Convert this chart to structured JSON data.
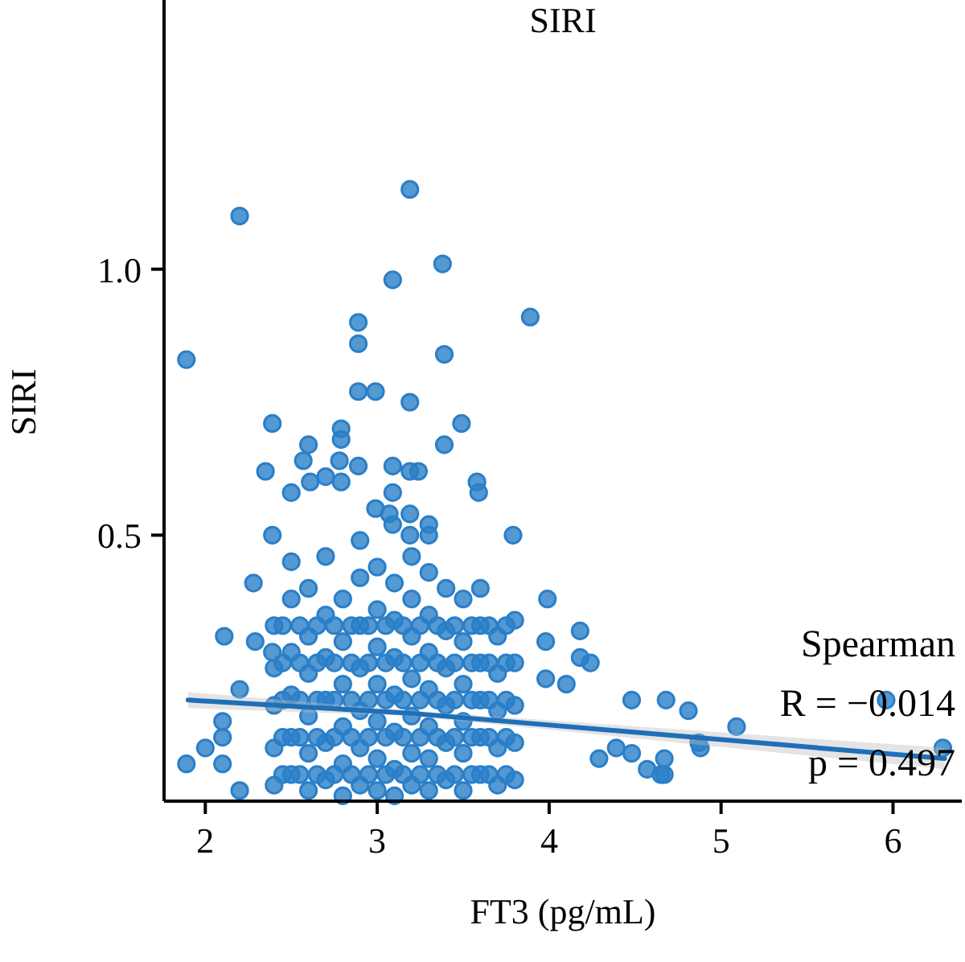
{
  "chart_data": {
    "type": "scatter",
    "title": "SIRI",
    "xlabel": "FT3 (pg/mL)",
    "ylabel": "SIRI",
    "xlim": [
      1.76,
      6.4
    ],
    "ylim": [
      0,
      1.5
    ],
    "xticks": [
      2,
      3,
      4,
      5,
      6
    ],
    "yticks": [
      {
        "value": 0.5,
        "label": "0.5"
      },
      {
        "value": 1,
        "label": "1.0"
      }
    ],
    "grid": false,
    "annotations": [
      "Spearman",
      "R = −0.014",
      "p = 0.497"
    ],
    "series": [
      {
        "marker": "circle",
        "color": "#2a7fc8",
        "x": [
          3.19,
          2.2,
          3.38,
          3.09,
          3.89,
          2.89,
          2.89,
          3.39,
          1.89,
          2.89,
          2.99,
          3.19,
          2.39,
          3.49,
          2.6,
          2.79,
          2.79,
          3.39,
          2.35,
          2.57,
          2.78,
          2.89,
          3.09,
          3.19,
          3.24,
          2.5,
          2.61,
          2.7,
          2.79,
          3.58,
          3.59,
          3.09,
          2.99,
          3.07,
          3.19,
          3.3,
          3.09,
          3.79,
          2.39,
          3.19,
          3.3,
          2.11,
          2.28,
          2.29,
          2.2,
          1.89,
          2.0,
          2.1,
          2.1,
          2.1,
          2.2,
          2.39,
          3.99,
          4.18,
          4.18,
          4.24,
          4.48,
          4.68,
          4.81,
          4.39,
          4.48,
          4.57,
          4.67,
          4.67,
          4.29,
          4.88,
          3.98,
          3.98,
          4.1,
          5.09,
          5.96,
          6.29,
          4.87,
          4.65,
          2.4,
          2.4,
          2.4,
          2.4,
          2.4,
          2.5,
          2.5,
          2.5,
          2.5,
          2.5,
          2.5,
          2.6,
          2.6,
          2.6,
          2.6,
          2.6,
          2.6,
          2.7,
          2.7,
          2.7,
          2.7,
          2.7,
          2.7,
          2.8,
          2.8,
          2.8,
          2.8,
          2.8,
          2.8,
          2.9,
          2.9,
          2.9,
          2.9,
          2.9,
          2.9,
          2.9,
          3.0,
          3.0,
          3.0,
          3.0,
          3.0,
          3.0,
          3.0,
          3.1,
          3.1,
          3.1,
          3.1,
          3.1,
          3.1,
          3.1,
          3.2,
          3.2,
          3.2,
          3.2,
          3.2,
          3.2,
          3.2,
          3.3,
          3.3,
          3.3,
          3.3,
          3.3,
          3.3,
          3.3,
          3.4,
          3.4,
          3.4,
          3.4,
          3.4,
          3.4,
          3.5,
          3.5,
          3.5,
          3.5,
          3.5,
          3.5,
          3.6,
          3.6,
          3.6,
          3.6,
          3.6,
          3.6,
          3.7,
          3.7,
          3.7,
          3.7,
          3.7,
          3.8,
          3.8,
          3.8,
          3.8,
          3.8,
          2.45,
          2.45,
          2.45,
          2.45,
          2.45,
          2.55,
          2.55,
          2.55,
          2.55,
          2.55,
          2.65,
          2.65,
          2.65,
          2.65,
          2.65,
          2.75,
          2.75,
          2.75,
          2.75,
          2.75,
          2.85,
          2.85,
          2.85,
          2.85,
          2.85,
          2.95,
          2.95,
          2.95,
          2.95,
          2.95,
          3.05,
          3.05,
          3.05,
          3.05,
          3.05,
          3.15,
          3.15,
          3.15,
          3.15,
          3.15,
          3.25,
          3.25,
          3.25,
          3.25,
          3.25,
          3.35,
          3.35,
          3.35,
          3.35,
          3.35,
          3.45,
          3.45,
          3.45,
          3.45,
          3.45,
          3.55,
          3.55,
          3.55,
          3.55,
          3.55,
          3.65,
          3.65,
          3.65,
          3.65,
          3.65,
          3.75,
          3.75,
          3.75,
          3.75,
          3.75
        ],
        "values": [
          1.15,
          1.1,
          1.01,
          0.98,
          0.91,
          0.9,
          0.86,
          0.84,
          0.83,
          0.77,
          0.77,
          0.75,
          0.71,
          0.71,
          0.67,
          0.7,
          0.68,
          0.67,
          0.62,
          0.64,
          0.64,
          0.63,
          0.63,
          0.62,
          0.62,
          0.58,
          0.6,
          0.61,
          0.6,
          0.6,
          0.58,
          0.58,
          0.55,
          0.54,
          0.54,
          0.52,
          0.52,
          0.5,
          0.5,
          0.5,
          0.5,
          0.31,
          0.41,
          0.3,
          0.21,
          0.07,
          0.1,
          0.07,
          0.12,
          0.15,
          0.02,
          0.28,
          0.38,
          0.32,
          0.27,
          0.26,
          0.19,
          0.19,
          0.17,
          0.1,
          0.09,
          0.06,
          0.05,
          0.08,
          0.08,
          0.1,
          0.3,
          0.23,
          0.22,
          0.14,
          0.19,
          0.1,
          0.11,
          0.05,
          0.03,
          0.1,
          0.18,
          0.25,
          0.33,
          0.05,
          0.12,
          0.2,
          0.28,
          0.38,
          0.45,
          0.02,
          0.09,
          0.16,
          0.24,
          0.31,
          0.4,
          0.04,
          0.11,
          0.19,
          0.27,
          0.35,
          0.46,
          0.01,
          0.07,
          0.14,
          0.22,
          0.3,
          0.38,
          0.03,
          0.1,
          0.17,
          0.25,
          0.33,
          0.42,
          0.49,
          0.02,
          0.08,
          0.15,
          0.22,
          0.29,
          0.36,
          0.44,
          0.01,
          0.06,
          0.13,
          0.2,
          0.27,
          0.34,
          0.41,
          0.03,
          0.09,
          0.16,
          0.23,
          0.31,
          0.38,
          0.46,
          0.02,
          0.08,
          0.14,
          0.21,
          0.28,
          0.35,
          0.43,
          0.04,
          0.11,
          0.18,
          0.25,
          0.32,
          0.4,
          0.02,
          0.09,
          0.15,
          0.22,
          0.3,
          0.38,
          0.05,
          0.12,
          0.19,
          0.26,
          0.33,
          0.4,
          0.03,
          0.1,
          0.17,
          0.24,
          0.31,
          0.04,
          0.11,
          0.18,
          0.26,
          0.34,
          0.05,
          0.12,
          0.19,
          0.26,
          0.33,
          0.05,
          0.12,
          0.19,
          0.26,
          0.33,
          0.05,
          0.12,
          0.19,
          0.26,
          0.33,
          0.05,
          0.12,
          0.19,
          0.26,
          0.33,
          0.05,
          0.12,
          0.19,
          0.26,
          0.33,
          0.05,
          0.12,
          0.19,
          0.26,
          0.33,
          0.05,
          0.12,
          0.19,
          0.26,
          0.33,
          0.05,
          0.12,
          0.19,
          0.26,
          0.33,
          0.05,
          0.12,
          0.19,
          0.26,
          0.33,
          0.05,
          0.12,
          0.19,
          0.26,
          0.33,
          0.05,
          0.12,
          0.19,
          0.26,
          0.33,
          0.05,
          0.12,
          0.19,
          0.26,
          0.33,
          0.05,
          0.12,
          0.19,
          0.26,
          0.33,
          0.05,
          0.12,
          0.19,
          0.26,
          0.33
        ]
      },
      {
        "type": "line",
        "color": "#1f6fb8",
        "x": [
          1.9,
          3.2,
          6.3
        ],
        "values": [
          0.19,
          0.165,
          0.08
        ],
        "lower": [
          0.175,
          0.16,
          0.06
        ],
        "upper": [
          0.205,
          0.17,
          0.1
        ]
      }
    ]
  }
}
